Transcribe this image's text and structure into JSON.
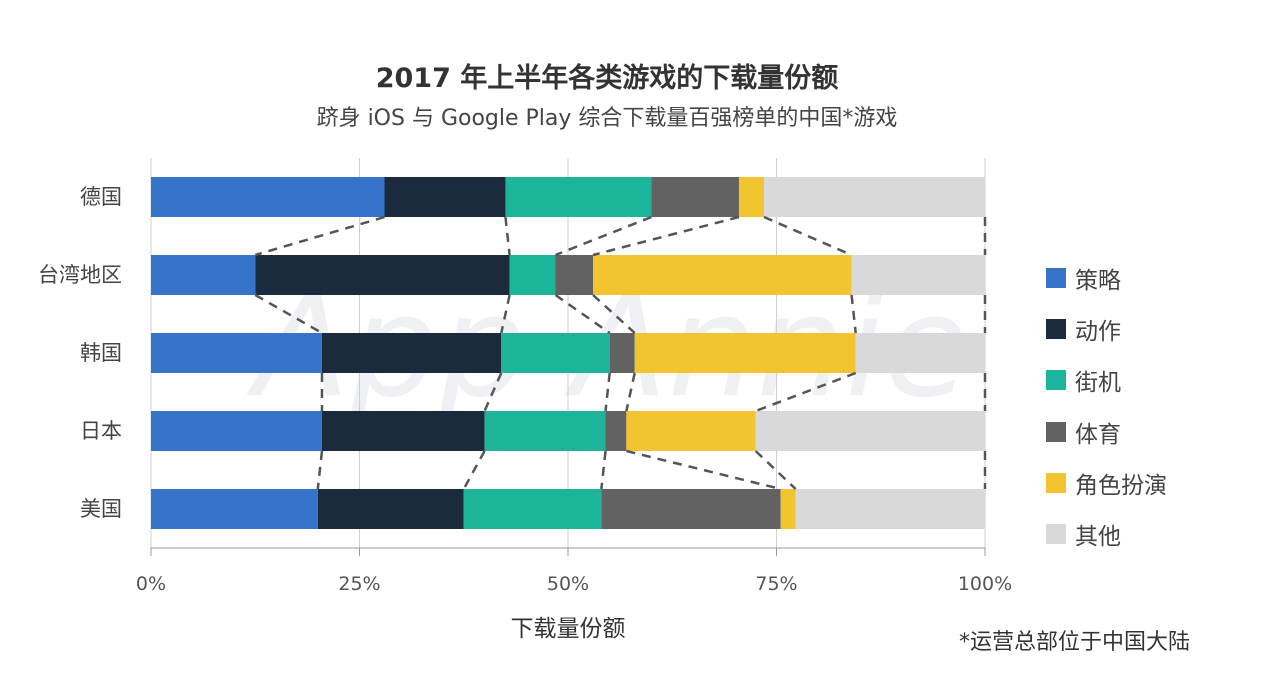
{
  "chart_data": {
    "type": "bar",
    "orientation": "horizontal-stacked-100",
    "title": "2017 年上半年各类游戏的下载量份额",
    "subtitle": "跻身 iOS 与 Google Play 综合下载量百强榜单的中国*游戏",
    "xlabel": "下载量份额",
    "xlim": [
      0,
      100
    ],
    "xticks": [
      "0%",
      "25%",
      "50%",
      "75%",
      "100%"
    ],
    "categories": [
      "德国",
      "台湾地区",
      "韩国",
      "日本",
      "美国"
    ],
    "series": [
      {
        "name": "策略",
        "color": "#3574c9",
        "values": [
          28.0,
          12.5,
          20.5,
          20.5,
          20.0
        ]
      },
      {
        "name": "动作",
        "color": "#1c2a3e",
        "values": [
          14.5,
          30.5,
          21.5,
          19.5,
          17.5
        ]
      },
      {
        "name": "街机",
        "color": "#1cb49a",
        "values": [
          17.5,
          5.5,
          13.0,
          14.5,
          16.5
        ]
      },
      {
        "name": "体育",
        "color": "#626262",
        "values": [
          10.5,
          4.5,
          3.0,
          2.5,
          21.5
        ]
      },
      {
        "name": "角色扮演",
        "color": "#f2c530",
        "values": [
          3.0,
          31.0,
          26.5,
          15.5,
          1.8
        ]
      },
      {
        "name": "其他",
        "color": "#d9d9d9",
        "values": [
          26.5,
          16.0,
          15.5,
          27.5,
          22.7
        ]
      }
    ],
    "grid": true,
    "legend": "right",
    "connector_lines": true
  },
  "watermark": "App Annie",
  "footnote": "*运营总部位于中国大陆"
}
